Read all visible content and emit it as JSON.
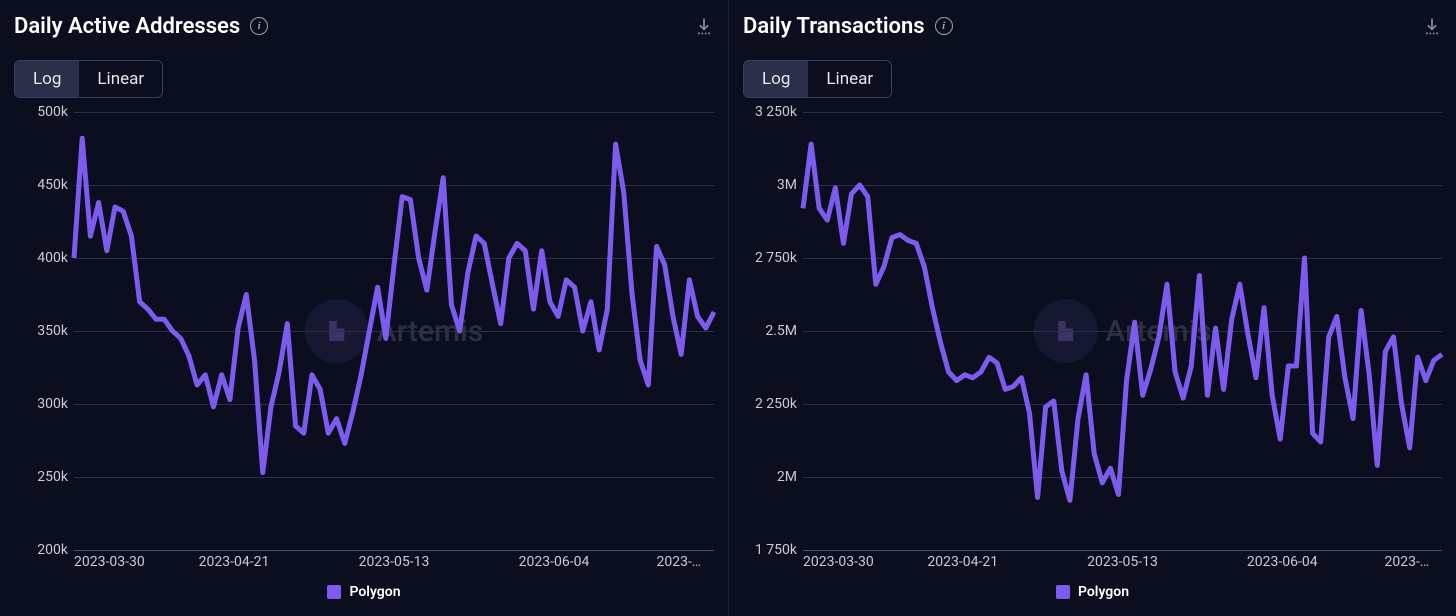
{
  "watermark_text": "Artemis",
  "legend_series_label": "Polygon",
  "line_color": "#7e5bef",
  "legend_swatch_color": "#7e5bef",
  "grid_color": "#2a2f4a",
  "baseline_color": "#4a5170",
  "background_color": "#0b0e1f",
  "panels": [
    {
      "title": "Daily Active Addresses",
      "toggle_options": [
        "Log",
        "Linear"
      ],
      "toggle_active": "Log",
      "type": "line",
      "y_axis": {
        "min": 200000,
        "max": 500000,
        "ticks": [
          {
            "v": 500000,
            "label": "500k"
          },
          {
            "v": 450000,
            "label": "450k"
          },
          {
            "v": 400000,
            "label": "400k"
          },
          {
            "v": 350000,
            "label": "350k"
          },
          {
            "v": 300000,
            "label": "300k"
          },
          {
            "v": 250000,
            "label": "250k"
          },
          {
            "v": 200000,
            "label": "200k"
          }
        ]
      },
      "x_axis": {
        "ticks": [
          {
            "f": 0.0,
            "label": "2023-03-30"
          },
          {
            "f": 0.25,
            "label": "2023-04-21"
          },
          {
            "f": 0.5,
            "label": "2023-05-13"
          },
          {
            "f": 0.75,
            "label": "2023-06-04"
          },
          {
            "f": 0.98,
            "label": "2023-…"
          }
        ]
      },
      "series_values": [
        400000,
        482000,
        415000,
        438000,
        405000,
        435000,
        432000,
        415000,
        370000,
        365000,
        358000,
        358000,
        350000,
        345000,
        333000,
        313000,
        320000,
        298000,
        320000,
        303000,
        352000,
        375000,
        330000,
        253000,
        298000,
        322000,
        355000,
        285000,
        280000,
        320000,
        310000,
        280000,
        290000,
        273000,
        295000,
        320000,
        350000,
        380000,
        345000,
        395000,
        442000,
        440000,
        400000,
        378000,
        418000,
        455000,
        368000,
        350000,
        390000,
        415000,
        410000,
        382000,
        355000,
        400000,
        410000,
        405000,
        365000,
        405000,
        370000,
        360000,
        385000,
        380000,
        350000,
        370000,
        337000,
        365000,
        478000,
        445000,
        376000,
        330000,
        313000,
        408000,
        395000,
        360000,
        334000,
        385000,
        360000,
        352000,
        363000
      ]
    },
    {
      "title": "Daily Transactions",
      "toggle_options": [
        "Log",
        "Linear"
      ],
      "toggle_active": "Log",
      "type": "line",
      "y_axis": {
        "min": 1750000,
        "max": 3250000,
        "ticks": [
          {
            "v": 3250000,
            "label": "3 250k"
          },
          {
            "v": 3000000,
            "label": "3M"
          },
          {
            "v": 2750000,
            "label": "2 750k"
          },
          {
            "v": 2500000,
            "label": "2.5M"
          },
          {
            "v": 2250000,
            "label": "2 250k"
          },
          {
            "v": 2000000,
            "label": "2M"
          },
          {
            "v": 1750000,
            "label": "1 750k"
          }
        ]
      },
      "x_axis": {
        "ticks": [
          {
            "f": 0.0,
            "label": "2023-03-30"
          },
          {
            "f": 0.25,
            "label": "2023-04-21"
          },
          {
            "f": 0.5,
            "label": "2023-05-13"
          },
          {
            "f": 0.75,
            "label": "2023-06-04"
          },
          {
            "f": 0.98,
            "label": "2023-…"
          }
        ]
      },
      "series_values": [
        2920000,
        3140000,
        2920000,
        2880000,
        2990000,
        2800000,
        2970000,
        3000000,
        2960000,
        2660000,
        2720000,
        2820000,
        2830000,
        2810000,
        2800000,
        2720000,
        2580000,
        2460000,
        2360000,
        2330000,
        2350000,
        2340000,
        2360000,
        2410000,
        2390000,
        2300000,
        2310000,
        2340000,
        2220000,
        1930000,
        2240000,
        2260000,
        2020000,
        1920000,
        2200000,
        2350000,
        2080000,
        1980000,
        2030000,
        1940000,
        2330000,
        2530000,
        2280000,
        2370000,
        2480000,
        2660000,
        2360000,
        2270000,
        2380000,
        2690000,
        2280000,
        2510000,
        2300000,
        2540000,
        2660000,
        2490000,
        2340000,
        2580000,
        2280000,
        2130000,
        2380000,
        2380000,
        2750000,
        2150000,
        2120000,
        2480000,
        2550000,
        2340000,
        2200000,
        2570000,
        2350000,
        2040000,
        2430000,
        2480000,
        2250000,
        2100000,
        2410000,
        2330000,
        2400000,
        2420000
      ]
    }
  ]
}
